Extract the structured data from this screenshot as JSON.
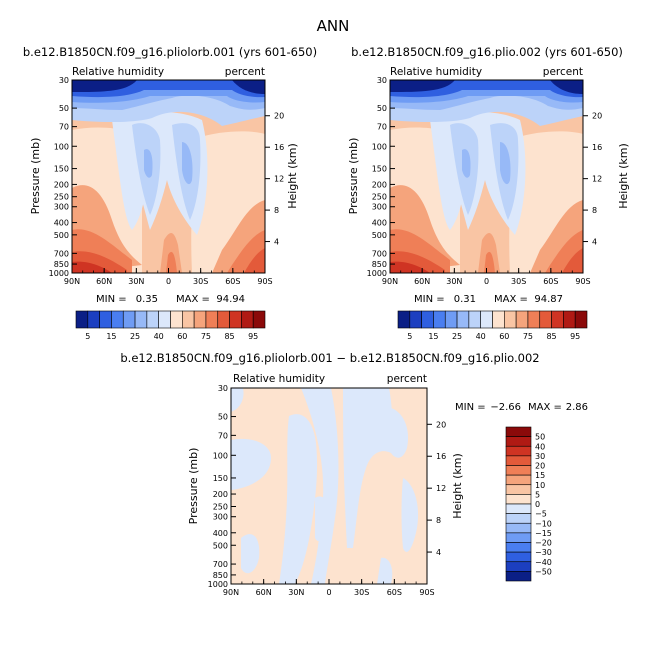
{
  "figure": {
    "title": "ANN",
    "palette_colors": [
      "#0b1f86",
      "#1c3fc0",
      "#2f5fe0",
      "#4a7ef0",
      "#6f9cf4",
      "#97b9f7",
      "#bcd3f9",
      "#dce8fb",
      "#fde3cf",
      "#f9c5a4",
      "#f5a47c",
      "#ef7f57",
      "#e35a3a",
      "#cf3423",
      "#b01a14",
      "#8b0a0a"
    ]
  },
  "chart_data": [
    {
      "type": "heatmap",
      "title": "b.e12.B1850CN.f09_g16.pliolorb.001 (yrs 601-650)",
      "left_label": "Relative humidity",
      "right_label": "percent",
      "ylabel": "Pressure (mb)",
      "ylabel_right": "Height (km)",
      "x_ticks": [
        "90N",
        "60N",
        "30N",
        "0",
        "30S",
        "60S",
        "90S"
      ],
      "y_ticks": [
        "30",
        "50",
        "70",
        "100",
        "150",
        "200",
        "250",
        "300",
        "400",
        "500",
        "700",
        "850",
        "1000"
      ],
      "y_ticks_right": [
        "20",
        "16",
        "12",
        "8",
        "4"
      ],
      "min_label": "MIN =",
      "min_value": "0.35",
      "max_label": "MAX =",
      "max_value": "94.94",
      "colorbar_labels": [
        "5",
        "15",
        "25",
        "40",
        "60",
        "75",
        "85",
        "95"
      ]
    },
    {
      "type": "heatmap",
      "title": "b.e12.B1850CN.f09_g16.plio.002 (yrs 601-650)",
      "left_label": "Relative humidity",
      "right_label": "percent",
      "ylabel": "Pressure (mb)",
      "ylabel_right": "Height (km)",
      "x_ticks": [
        "90N",
        "60N",
        "30N",
        "0",
        "30S",
        "60S",
        "90S"
      ],
      "y_ticks": [
        "30",
        "50",
        "70",
        "100",
        "150",
        "200",
        "250",
        "300",
        "400",
        "500",
        "700",
        "850",
        "1000"
      ],
      "y_ticks_right": [
        "20",
        "16",
        "12",
        "8",
        "4"
      ],
      "min_label": "MIN =",
      "min_value": "0.31",
      "max_label": "MAX =",
      "max_value": "94.87",
      "colorbar_labels": [
        "5",
        "15",
        "25",
        "40",
        "60",
        "75",
        "85",
        "95"
      ]
    },
    {
      "type": "heatmap",
      "title": "b.e12.B1850CN.f09_g16.pliolorb.001 − b.e12.B1850CN.f09_g16.plio.002",
      "left_label": "Relative humidity",
      "right_label": "percent",
      "ylabel": "Pressure (mb)",
      "ylabel_right": "Height (km)",
      "x_ticks": [
        "90N",
        "60N",
        "30N",
        "0",
        "30S",
        "60S",
        "90S"
      ],
      "y_ticks": [
        "30",
        "50",
        "70",
        "100",
        "150",
        "200",
        "250",
        "300",
        "400",
        "500",
        "700",
        "850",
        "1000"
      ],
      "y_ticks_right": [
        "20",
        "16",
        "12",
        "8",
        "4"
      ],
      "min_label": "MIN =",
      "min_value": "−2.66",
      "max_label": "MAX =",
      "max_value": "2.86",
      "colorbar_labels": [
        "50",
        "40",
        "30",
        "20",
        "15",
        "10",
        "5",
        "0",
        "−5",
        "−10",
        "−15",
        "−20",
        "−30",
        "−40",
        "−50"
      ]
    }
  ]
}
